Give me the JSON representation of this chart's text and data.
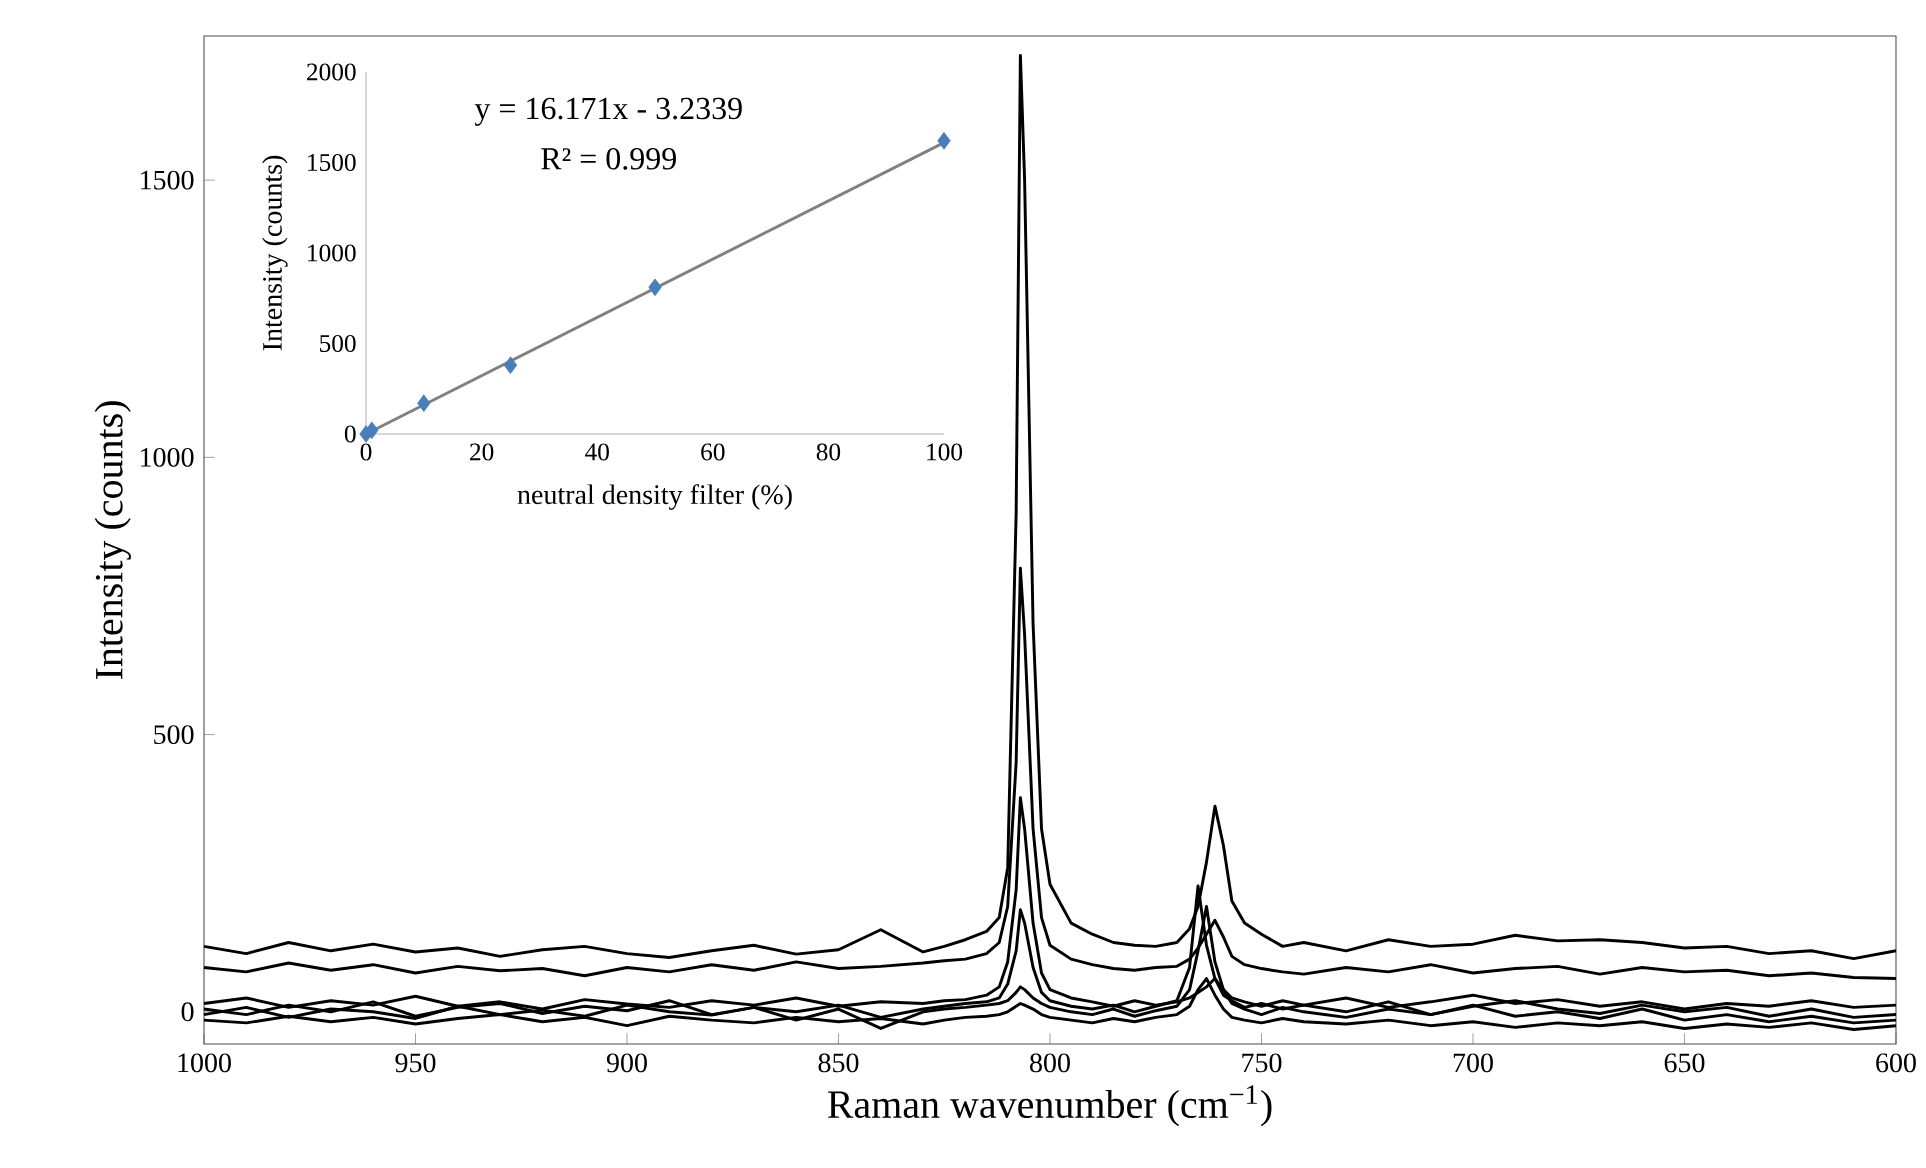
{
  "chart_data": [
    {
      "type": "line",
      "xlabel": "Raman wavenumber (cm$^{−1}$)",
      "ylabel": "Intensity (counts)",
      "xlim": [
        1000,
        600
      ],
      "ylim": [
        -58,
        1760
      ],
      "xticks": [
        1000,
        950,
        900,
        850,
        800,
        750,
        700,
        650,
        600
      ],
      "yticks": [
        0,
        500,
        1000,
        1500
      ],
      "x": [
        1000,
        990,
        980,
        970,
        960,
        950,
        940,
        930,
        920,
        910,
        900,
        890,
        880,
        870,
        860,
        850,
        840,
        830,
        825,
        820,
        815,
        812,
        810,
        808,
        807,
        806,
        804,
        802,
        800,
        795,
        790,
        785,
        780,
        775,
        770,
        767,
        765,
        763,
        761,
        759,
        757,
        754,
        750,
        745,
        740,
        730,
        720,
        710,
        700,
        690,
        680,
        670,
        660,
        650,
        640,
        630,
        620,
        610,
        600
      ],
      "series": [
        {
          "color": "#000000",
          "values": [
            118,
            105,
            125,
            110,
            122,
            108,
            115,
            100,
            112,
            118,
            105,
            98,
            110,
            120,
            104,
            112,
            148,
            108,
            118,
            130,
            145,
            170,
            260,
            900,
            1725,
            1500,
            700,
            330,
            230,
            160,
            140,
            125,
            120,
            118,
            125,
            150,
            190,
            270,
            371,
            300,
            200,
            160,
            140,
            118,
            125,
            110,
            130,
            118,
            122,
            138,
            128,
            130,
            125,
            115,
            118,
            105,
            110,
            96,
            110
          ]
        },
        {
          "color": "#000000",
          "values": [
            80,
            72,
            88,
            75,
            85,
            70,
            82,
            74,
            78,
            65,
            80,
            72,
            85,
            75,
            90,
            78,
            82,
            88,
            92,
            95,
            105,
            125,
            190,
            450,
            800,
            680,
            330,
            170,
            120,
            95,
            85,
            78,
            75,
            80,
            82,
            95,
            115,
            140,
            165,
            135,
            100,
            85,
            78,
            72,
            68,
            80,
            72,
            85,
            70,
            78,
            82,
            68,
            80,
            72,
            75,
            65,
            70,
            62,
            60
          ]
        },
        {
          "color": "#000000",
          "values": [
            15,
            25,
            8,
            20,
            12,
            28,
            10,
            18,
            5,
            22,
            14,
            8,
            20,
            12,
            25,
            10,
            18,
            15,
            20,
            22,
            30,
            45,
            90,
            220,
            386,
            330,
            160,
            70,
            40,
            25,
            18,
            10,
            20,
            12,
            18,
            25,
            35,
            45,
            60,
            40,
            25,
            18,
            10,
            20,
            12,
            25,
            8,
            18,
            30,
            15,
            22,
            10,
            18,
            5,
            15,
            10,
            20,
            8,
            12
          ]
        },
        {
          "color": "#000000",
          "values": [
            5,
            -5,
            12,
            0,
            18,
            -8,
            8,
            15,
            -3,
            10,
            2,
            20,
            -5,
            8,
            0,
            12,
            -10,
            5,
            10,
            15,
            18,
            25,
            50,
            110,
            184,
            160,
            80,
            35,
            20,
            10,
            5,
            12,
            0,
            10,
            20,
            80,
            227,
            120,
            60,
            30,
            20,
            8,
            15,
            5,
            12,
            0,
            18,
            -5,
            10,
            20,
            5,
            -3,
            12,
            0,
            8,
            -8,
            5,
            -10,
            -5
          ]
        },
        {
          "color": "#000000",
          "values": [
            -5,
            8,
            -10,
            5,
            0,
            -12,
            10,
            -5,
            3,
            -8,
            12,
            0,
            -6,
            8,
            -15,
            5,
            -30,
            0,
            5,
            8,
            12,
            15,
            20,
            35,
            45,
            40,
            25,
            15,
            8,
            0,
            -5,
            5,
            -8,
            2,
            10,
            40,
            110,
            190,
            90,
            40,
            15,
            5,
            -5,
            8,
            0,
            -10,
            5,
            -5,
            12,
            -8,
            0,
            -12,
            5,
            -15,
            -5,
            -18,
            -8,
            -20,
            -15
          ]
        },
        {
          "color": "#000000",
          "values": [
            -15,
            -20,
            -8,
            -18,
            -10,
            -22,
            -12,
            -5,
            -18,
            -10,
            -25,
            -8,
            -15,
            -20,
            -10,
            -18,
            -12,
            -22,
            -15,
            -10,
            -8,
            -5,
            0,
            10,
            15,
            12,
            5,
            -5,
            -10,
            -15,
            -20,
            -12,
            -18,
            -10,
            -5,
            10,
            40,
            60,
            30,
            5,
            -10,
            -15,
            -20,
            -12,
            -18,
            -22,
            -15,
            -25,
            -18,
            -28,
            -20,
            -25,
            -18,
            -30,
            -22,
            -28,
            -20,
            -32,
            -25
          ]
        }
      ]
    },
    {
      "type": "scatter",
      "xlabel": "neutral density filter (%)",
      "ylabel": "Intensity (counts)",
      "xlim": [
        0,
        100
      ],
      "ylim": [
        0,
        2000
      ],
      "xticks": [
        0,
        20,
        40,
        60,
        80,
        100
      ],
      "yticks": [
        0,
        500,
        1000,
        1500,
        2000
      ],
      "annotations": [
        "y = 16.171x - 3.2339",
        "R² = 0.999"
      ],
      "series": [
        {
          "type": "line",
          "color": "#808080",
          "marker": "none",
          "x": [
            0,
            100
          ],
          "values": [
            0,
            1610
          ]
        },
        {
          "type": "scatter",
          "color": "#4a7ebb",
          "marker": "diamond",
          "x": [
            0,
            1,
            10,
            25,
            50,
            100
          ],
          "values": [
            0,
            20,
            170,
            380,
            810,
            1620
          ]
        }
      ]
    }
  ]
}
